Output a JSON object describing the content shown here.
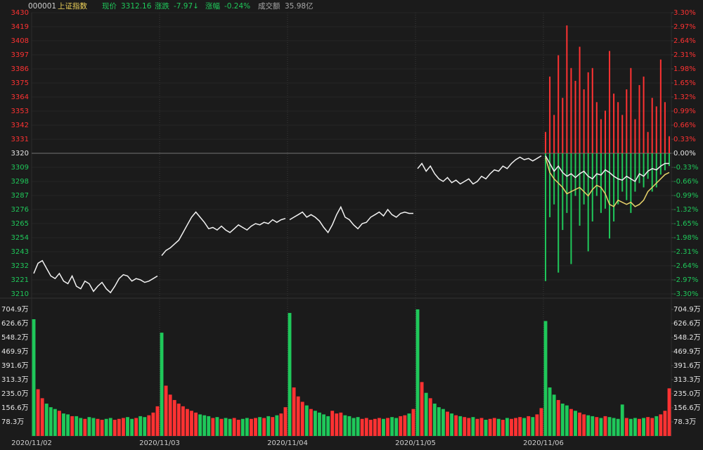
{
  "quote": {
    "code": "000001",
    "name": "上证指数",
    "fields": [
      {
        "label": "现价",
        "value": "3312.16"
      },
      {
        "label": "涨跌",
        "value": "-7.97↓"
      },
      {
        "label": "涨幅",
        "value": "-0.24%"
      },
      {
        "label": "成交额",
        "value": "35.98亿"
      }
    ]
  },
  "chart_data": [
    {
      "type": "line",
      "days": [
        "2020/11/02",
        "2020/11/03",
        "2020/11/04",
        "2020/11/05",
        "2020/11/06"
      ],
      "ylim": [
        3210,
        3430
      ],
      "yticks": [
        3430,
        3419,
        3408,
        3397,
        3386,
        3375,
        3364,
        3353,
        3342,
        3331,
        3320,
        3309,
        3298,
        3287,
        3276,
        3265,
        3254,
        3243,
        3232,
        3221,
        3210
      ],
      "y2lim": [
        -3.3,
        3.3
      ],
      "y2ticks": [
        {
          "value": 3.3,
          "label": "3.30%"
        },
        {
          "value": 2.97,
          "label": "2.97%"
        },
        {
          "value": 2.64,
          "label": "2.64%"
        },
        {
          "value": 2.31,
          "label": "2.31%"
        },
        {
          "value": 1.98,
          "label": "1.98%"
        },
        {
          "value": 1.65,
          "label": "1.65%"
        },
        {
          "value": 1.32,
          "label": "1.32%"
        },
        {
          "value": 0.99,
          "label": "0.99%"
        },
        {
          "value": 0.66,
          "label": "0.66%"
        },
        {
          "value": 0.33,
          "label": "0.33%"
        },
        {
          "value": 0,
          "label": "0.00%"
        },
        {
          "value": -0.33,
          "label": "-0.33%"
        },
        {
          "value": -0.66,
          "label": "-0.66%"
        },
        {
          "value": -0.99,
          "label": "-0.99%"
        },
        {
          "value": -1.32,
          "label": "-1.32%"
        },
        {
          "value": -1.65,
          "label": "-1.65%"
        },
        {
          "value": -1.98,
          "label": "-1.98%"
        },
        {
          "value": -2.31,
          "label": "-2.31%"
        },
        {
          "value": -2.64,
          "label": "-2.64%"
        },
        {
          "value": -2.97,
          "label": "-2.97%"
        },
        {
          "value": -3.3,
          "label": "-3.30%"
        }
      ],
      "baseline": 3320,
      "grid": true,
      "series": [
        {
          "type": "line",
          "color": "#f2f2f2",
          "values": [
            3226,
            3234,
            3236,
            3230,
            3224,
            3222,
            3226,
            3220,
            3218,
            3224,
            3216,
            3214,
            3220,
            3218,
            3212,
            3216,
            3219,
            3214,
            3211,
            3216,
            3222,
            3225,
            3224,
            3220,
            3222,
            3221,
            3219,
            3220,
            3222,
            3224,
            3240,
            3244,
            3246,
            3249,
            3252,
            3258,
            3264,
            3270,
            3274,
            3270,
            3266,
            3261,
            3262,
            3260,
            3263,
            3260,
            3258,
            3261,
            3264,
            3262,
            3260,
            3263,
            3265,
            3264,
            3266,
            3265,
            3268,
            3266,
            3268,
            3269,
            3268,
            3270,
            3272,
            3274,
            3270,
            3272,
            3270,
            3267,
            3262,
            3258,
            3264,
            3272,
            3278,
            3270,
            3268,
            3264,
            3261,
            3265,
            3266,
            3270,
            3272,
            3274,
            3271,
            3276,
            3272,
            3270,
            3273,
            3274,
            3273,
            3273,
            3308,
            3312,
            3306,
            3310,
            3304,
            3300,
            3298,
            3301,
            3297,
            3299,
            3296,
            3298,
            3300,
            3296,
            3298,
            3302,
            3300,
            3304,
            3307,
            3306,
            3310,
            3308,
            3312,
            3315,
            3317,
            3315,
            3316,
            3314,
            3316,
            3318,
            3318,
            3312,
            3306,
            3310,
            3305,
            3302,
            3304,
            3301,
            3304,
            3306,
            3302,
            3300,
            3304,
            3303,
            3307,
            3305,
            3302,
            3300,
            3299,
            3302,
            3300,
            3298,
            3304,
            3302,
            3306,
            3308,
            3307,
            3310,
            3312,
            3312
          ]
        },
        {
          "type": "line",
          "color": "#e8d36a",
          "axis": "y2",
          "values": [
            null,
            null,
            null,
            null,
            null,
            null,
            null,
            null,
            null,
            null,
            null,
            null,
            null,
            null,
            null,
            null,
            null,
            null,
            null,
            null,
            null,
            null,
            null,
            null,
            null,
            null,
            null,
            null,
            null,
            null,
            null,
            null,
            null,
            null,
            null,
            null,
            null,
            null,
            null,
            null,
            null,
            null,
            null,
            null,
            null,
            null,
            null,
            null,
            null,
            null,
            null,
            null,
            null,
            null,
            null,
            null,
            null,
            null,
            null,
            null,
            null,
            null,
            null,
            null,
            null,
            null,
            null,
            null,
            null,
            null,
            null,
            null,
            null,
            null,
            null,
            null,
            null,
            null,
            null,
            null,
            null,
            null,
            null,
            null,
            null,
            null,
            null,
            null,
            null,
            null,
            null,
            null,
            null,
            null,
            null,
            null,
            null,
            null,
            null,
            null,
            null,
            null,
            null,
            null,
            null,
            null,
            null,
            null,
            null,
            null,
            null,
            null,
            null,
            null,
            null,
            null,
            null,
            null,
            null,
            null,
            -0.1,
            -0.45,
            -0.6,
            -0.7,
            -0.8,
            -0.95,
            -0.9,
            -0.85,
            -0.8,
            -0.9,
            -1.0,
            -0.85,
            -0.75,
            -0.8,
            -0.95,
            -1.2,
            -1.25,
            -1.1,
            -1.15,
            -1.2,
            -1.15,
            -1.25,
            -1.2,
            -1.1,
            -0.9,
            -0.8,
            -0.7,
            -0.6,
            -0.5,
            -0.45
          ]
        },
        {
          "type": "bar",
          "color": "#ff3232",
          "axis": "y2",
          "values": [
            null,
            null,
            null,
            null,
            null,
            null,
            null,
            null,
            null,
            null,
            null,
            null,
            null,
            null,
            null,
            null,
            null,
            null,
            null,
            null,
            null,
            null,
            null,
            null,
            null,
            null,
            null,
            null,
            null,
            null,
            null,
            null,
            null,
            null,
            null,
            null,
            null,
            null,
            null,
            null,
            null,
            null,
            null,
            null,
            null,
            null,
            null,
            null,
            null,
            null,
            null,
            null,
            null,
            null,
            null,
            null,
            null,
            null,
            null,
            null,
            null,
            null,
            null,
            null,
            null,
            null,
            null,
            null,
            null,
            null,
            null,
            null,
            null,
            null,
            null,
            null,
            null,
            null,
            null,
            null,
            null,
            null,
            null,
            null,
            null,
            null,
            null,
            null,
            null,
            null,
            null,
            null,
            null,
            null,
            null,
            null,
            null,
            null,
            null,
            null,
            null,
            null,
            null,
            null,
            null,
            null,
            null,
            null,
            null,
            null,
            null,
            null,
            null,
            null,
            null,
            null,
            null,
            null,
            null,
            null,
            0.5,
            1.8,
            0.9,
            2.3,
            1.3,
            3.0,
            2.0,
            1.7,
            2.5,
            1.5,
            1.9,
            2.0,
            1.2,
            0.8,
            1.0,
            2.4,
            1.4,
            1.2,
            0.9,
            1.5,
            2.0,
            0.8,
            1.6,
            1.8,
            0.5,
            1.3,
            1.1,
            2.2,
            1.2,
            0.4
          ]
        },
        {
          "type": "bar",
          "color": "#1fc85a",
          "axis": "y2",
          "values": [
            null,
            null,
            null,
            null,
            null,
            null,
            null,
            null,
            null,
            null,
            null,
            null,
            null,
            null,
            null,
            null,
            null,
            null,
            null,
            null,
            null,
            null,
            null,
            null,
            null,
            null,
            null,
            null,
            null,
            null,
            null,
            null,
            null,
            null,
            null,
            null,
            null,
            null,
            null,
            null,
            null,
            null,
            null,
            null,
            null,
            null,
            null,
            null,
            null,
            null,
            null,
            null,
            null,
            null,
            null,
            null,
            null,
            null,
            null,
            null,
            null,
            null,
            null,
            null,
            null,
            null,
            null,
            null,
            null,
            null,
            null,
            null,
            null,
            null,
            null,
            null,
            null,
            null,
            null,
            null,
            null,
            null,
            null,
            null,
            null,
            null,
            null,
            null,
            null,
            null,
            null,
            null,
            null,
            null,
            null,
            null,
            null,
            null,
            null,
            null,
            null,
            null,
            null,
            null,
            null,
            null,
            null,
            null,
            null,
            null,
            null,
            null,
            null,
            null,
            null,
            null,
            null,
            null,
            null,
            null,
            -3.0,
            -1.5,
            -1.2,
            -2.8,
            -1.8,
            -1.4,
            -2.6,
            -1.0,
            -1.7,
            -1.2,
            -2.3,
            -1.6,
            -1.0,
            -1.4,
            -1.3,
            -2.0,
            -1.6,
            -1.2,
            -0.9,
            -1.1,
            -1.4,
            -0.9,
            -0.7,
            -0.8,
            -0.6,
            -0.9,
            -0.8,
            -0.5,
            -0.4,
            -0.3
          ]
        }
      ]
    },
    {
      "type": "bar",
      "ylim": [
        0,
        744
      ],
      "yticks": [
        {
          "value": 704.9,
          "label": "704.9万"
        },
        {
          "value": 626.6,
          "label": "626.6万"
        },
        {
          "value": 548.2,
          "label": "548.2万"
        },
        {
          "value": 469.9,
          "label": "469.9万"
        },
        {
          "value": 391.6,
          "label": "391.6万"
        },
        {
          "value": 313.3,
          "label": "313.3万"
        },
        {
          "value": 235.0,
          "label": "235.0万"
        },
        {
          "value": 156.6,
          "label": "156.6万"
        },
        {
          "value": 78.3,
          "label": "78.3万"
        }
      ],
      "up_color": "#ff3232",
      "down_color": "#1fc85a",
      "values": [
        650,
        260,
        210,
        180,
        160,
        150,
        140,
        125,
        120,
        110,
        110,
        100,
        95,
        105,
        100,
        95,
        90,
        95,
        100,
        90,
        95,
        100,
        105,
        95,
        100,
        110,
        105,
        115,
        130,
        165,
        575,
        280,
        230,
        200,
        180,
        165,
        150,
        140,
        130,
        120,
        115,
        110,
        100,
        105,
        95,
        100,
        95,
        100,
        90,
        95,
        100,
        95,
        100,
        105,
        100,
        110,
        105,
        115,
        125,
        160,
        685,
        270,
        220,
        190,
        170,
        150,
        140,
        130,
        120,
        110,
        140,
        125,
        130,
        115,
        110,
        100,
        105,
        95,
        100,
        90,
        95,
        100,
        95,
        100,
        105,
        100,
        110,
        115,
        125,
        150,
        705,
        300,
        240,
        210,
        180,
        160,
        150,
        135,
        125,
        115,
        110,
        105,
        100,
        105,
        95,
        100,
        90,
        95,
        100,
        95,
        90,
        100,
        95,
        100,
        105,
        100,
        110,
        105,
        120,
        155,
        640,
        270,
        230,
        200,
        180,
        170,
        150,
        140,
        130,
        120,
        115,
        110,
        105,
        100,
        110,
        105,
        100,
        95,
        175,
        100,
        95,
        100,
        95,
        100,
        105,
        100,
        110,
        120,
        140,
        265
      ]
    }
  ]
}
